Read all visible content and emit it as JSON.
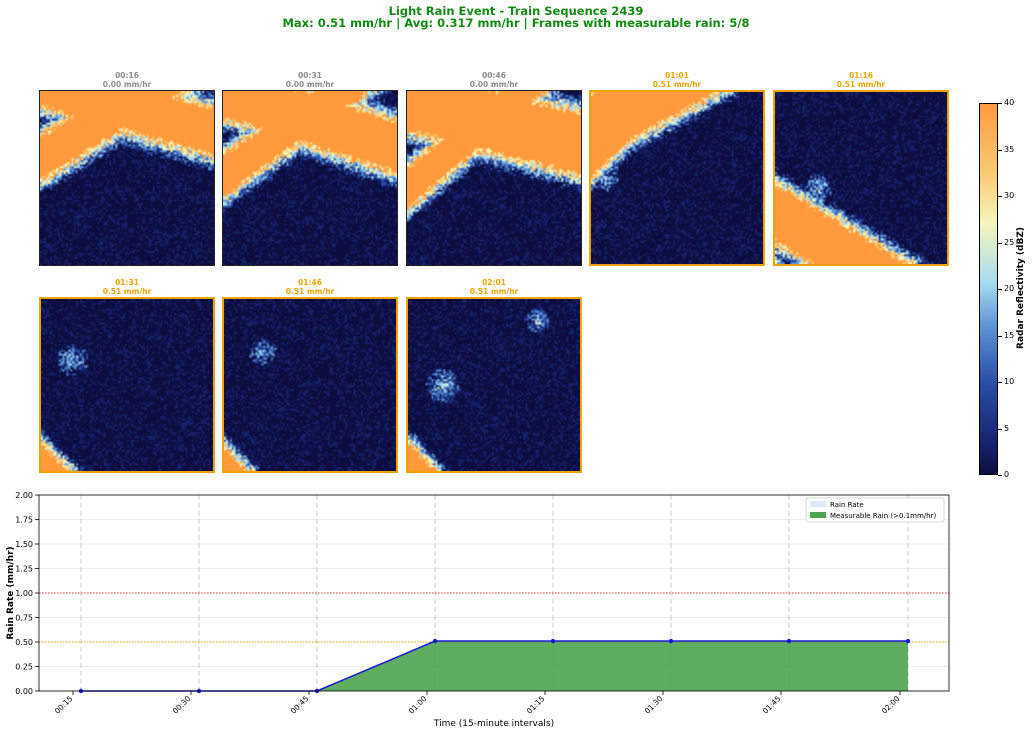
{
  "title": "Light Rain Event - Train Sequence 2439",
  "subtitle": "Max: 0.51 mm/hr | Avg: 0.317 mm/hr | Frames with measurable rain: 5/8",
  "frames": [
    {
      "time": "00:16",
      "rate_label": "0.00 mm/hr",
      "rate": 0.0,
      "highlight": false
    },
    {
      "time": "00:31",
      "rate_label": "0.00 mm/hr",
      "rate": 0.0,
      "highlight": false
    },
    {
      "time": "00:46",
      "rate_label": "0.00 mm/hr",
      "rate": 0.0,
      "highlight": false
    },
    {
      "time": "01:01",
      "rate_label": "0.51 mm/hr",
      "rate": 0.51,
      "highlight": true
    },
    {
      "time": "01:16",
      "rate_label": "0.51 mm/hr",
      "rate": 0.51,
      "highlight": true
    },
    {
      "time": "01:31",
      "rate_label": "0.51 mm/hr",
      "rate": 0.51,
      "highlight": true
    },
    {
      "time": "01:46",
      "rate_label": "0.51 mm/hr",
      "rate": 0.51,
      "highlight": true
    },
    {
      "time": "02:01",
      "rate_label": "0.51 mm/hr",
      "rate": 0.51,
      "highlight": true
    }
  ],
  "colorbar": {
    "label": "Radar Reflectivity (dBZ)",
    "ticks": [
      "0",
      "5",
      "10",
      "15",
      "20",
      "25",
      "30",
      "35",
      "40"
    ],
    "range": [
      0,
      40
    ],
    "colors": [
      "#0d0d40",
      "#16226e",
      "#2a4fa6",
      "#5c95d6",
      "#a9dcf2",
      "#f5f5b8",
      "#fbc870",
      "#ff9a3c"
    ]
  },
  "chart_data": {
    "type": "area",
    "xlabel": "Time (15-minute intervals)",
    "ylabel": "Rain Rate (mm/hr)",
    "x": [
      "00:16",
      "00:31",
      "00:46",
      "01:01",
      "01:16",
      "01:31",
      "01:46",
      "02:01"
    ],
    "y": [
      0.0,
      0.0,
      0.0,
      0.51,
      0.51,
      0.51,
      0.51,
      0.51
    ],
    "xtick_labels": [
      "00:15",
      "00:30",
      "00:45",
      "01:00",
      "01:15",
      "01:30",
      "01:45",
      "02:00"
    ],
    "ytick_labels": [
      "0.00",
      "0.25",
      "0.50",
      "0.75",
      "1.00",
      "1.25",
      "1.50",
      "1.75",
      "2.00"
    ],
    "ylim": [
      0,
      2.0
    ],
    "threshold_lines": [
      {
        "value": 1.0,
        "color": "#e8413a",
        "style": "dotted"
      },
      {
        "value": 0.5,
        "color": "#f2a300",
        "style": "dotted"
      }
    ],
    "legend": [
      "Rain Rate",
      "Measurable Rain (>0.1mm/hr)"
    ],
    "legend_position": "top-right",
    "grid": true,
    "colors": {
      "line": "#1a1adb",
      "fill": "#4ea54e",
      "rate_patch": "#dcebf7"
    }
  }
}
